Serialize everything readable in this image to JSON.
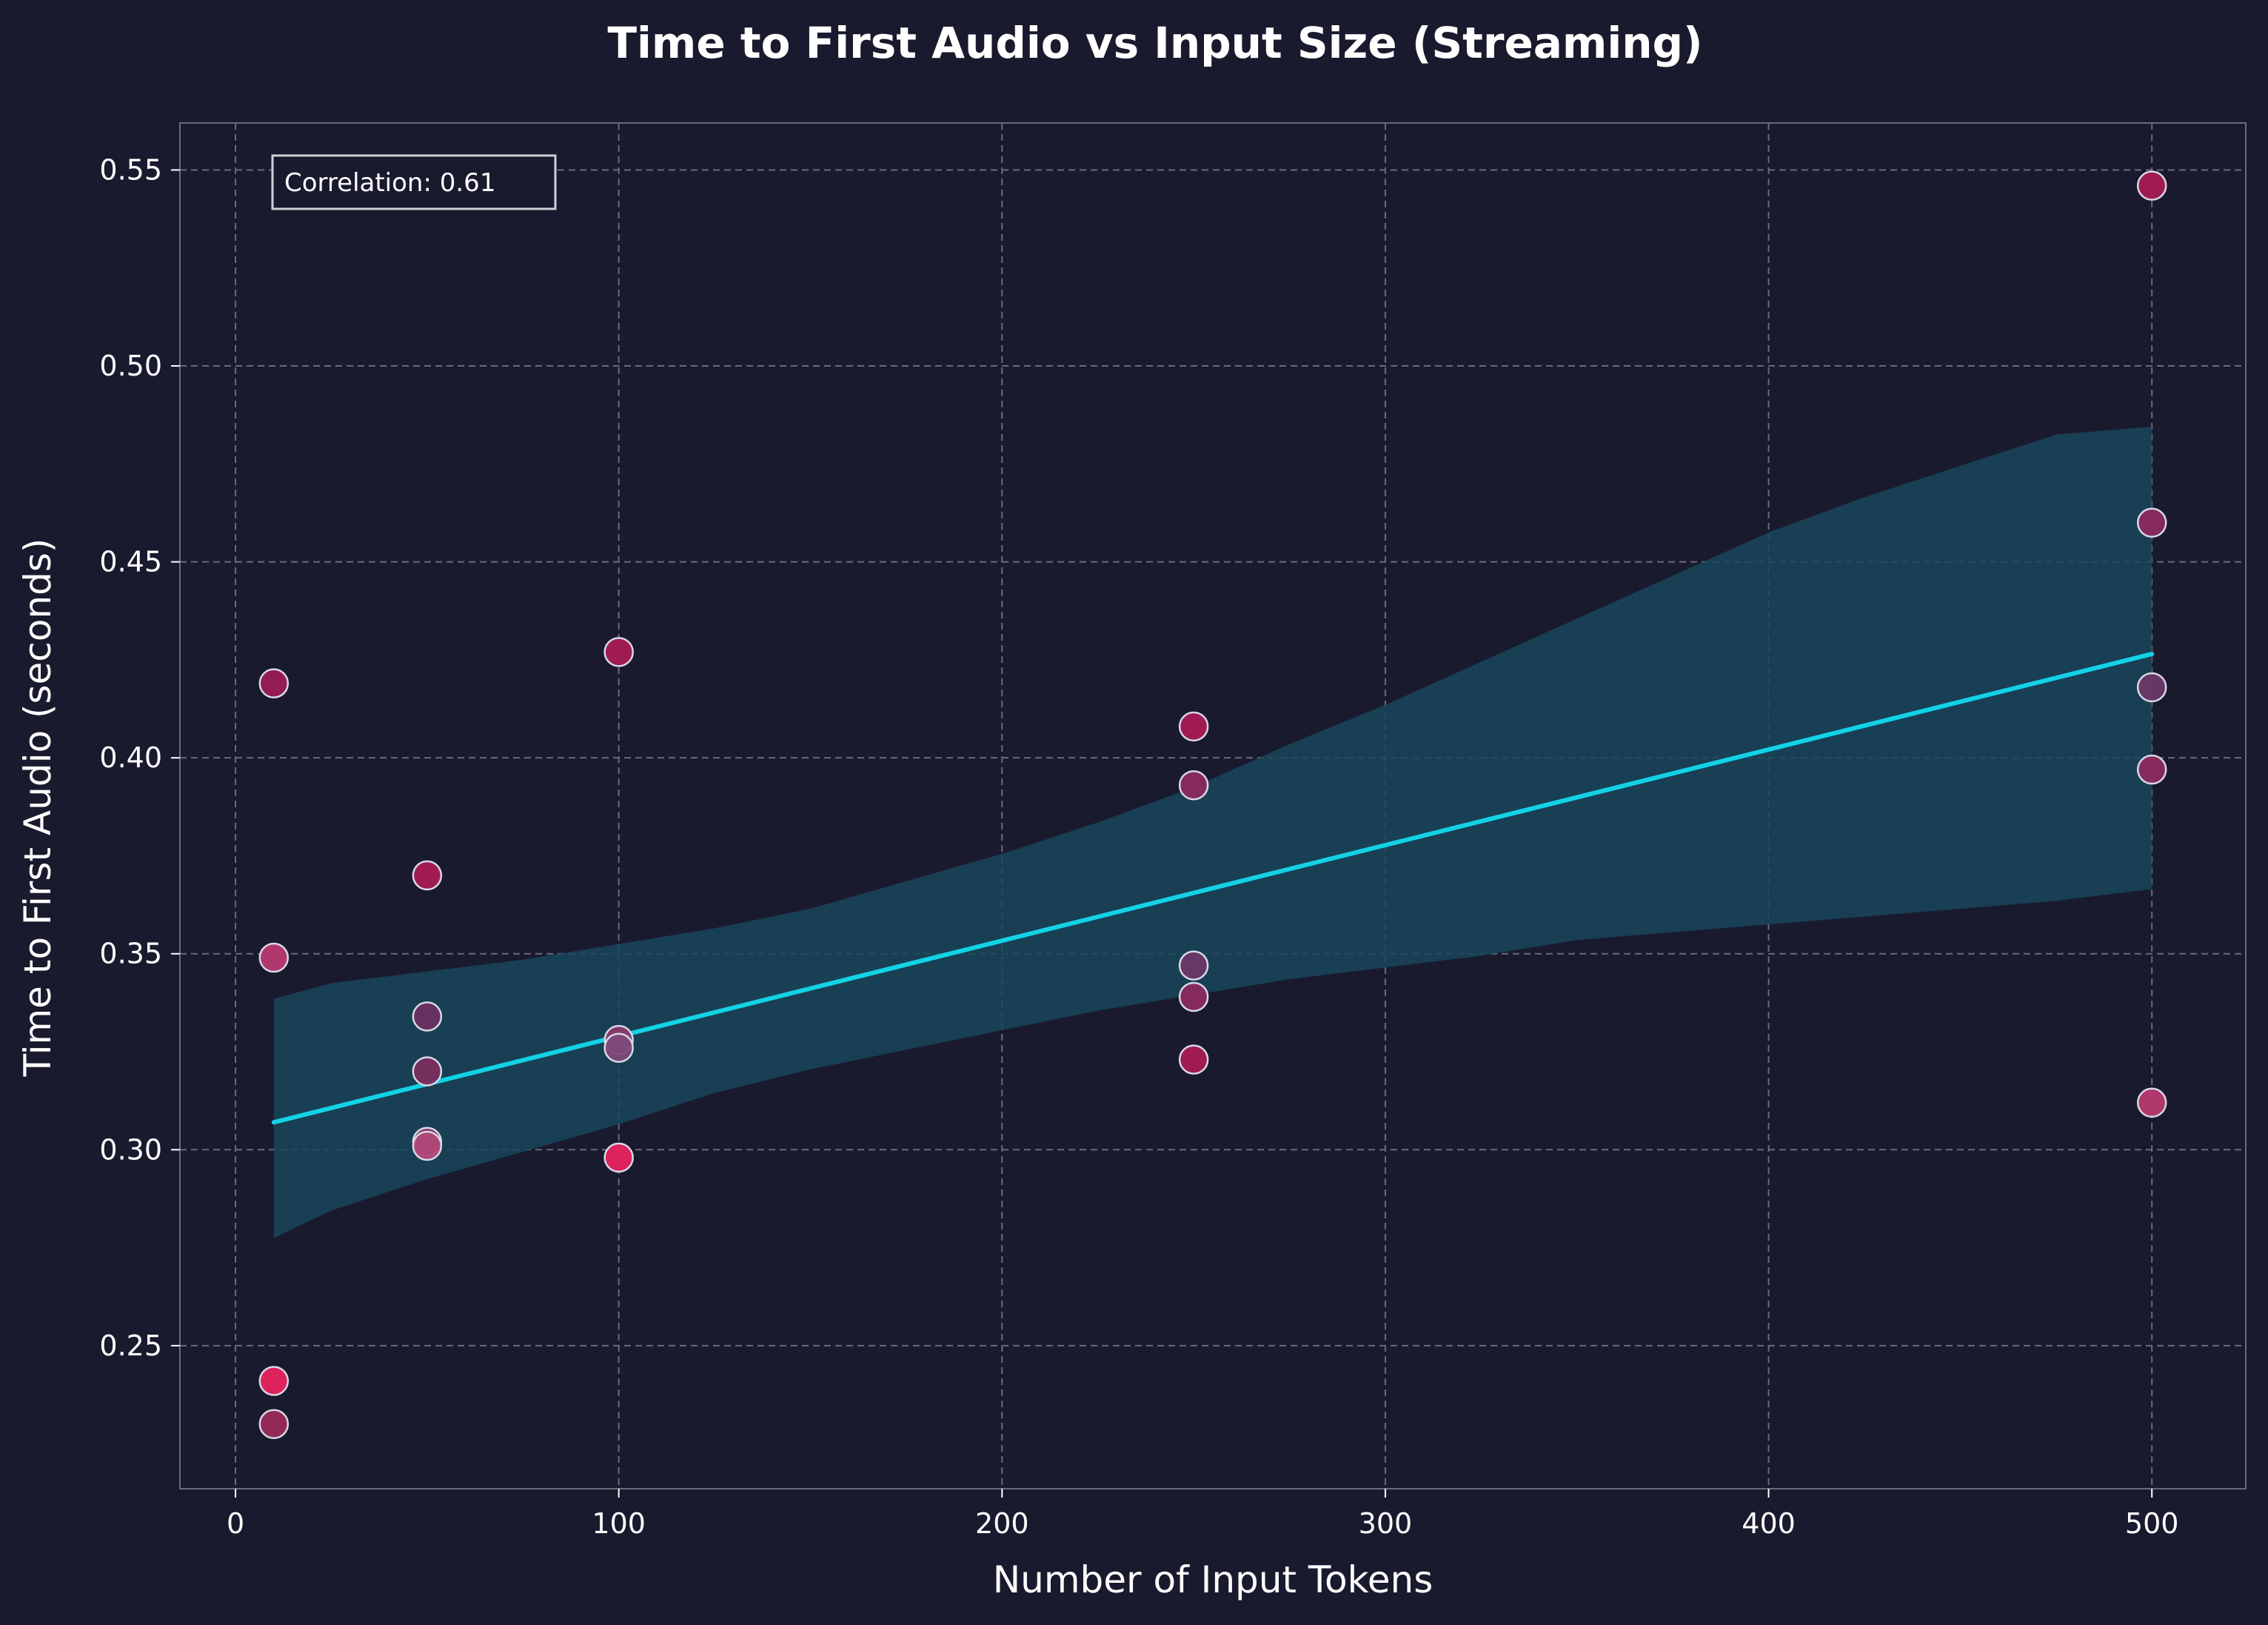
{
  "chart_data": {
    "type": "scatter",
    "title": "Time to First Audio vs Input Size (Streaming)",
    "xlabel": "Number of Input Tokens",
    "ylabel": "Time to First Audio (seconds)",
    "xlim": [
      -14.5,
      524.5
    ],
    "ylim": [
      0.2135,
      0.562
    ],
    "xticks": [
      0,
      100,
      200,
      300,
      400,
      500
    ],
    "xtick_labels": [
      "0",
      "100",
      "200",
      "300",
      "400",
      "500"
    ],
    "yticks": [
      0.25,
      0.3,
      0.35,
      0.4,
      0.45,
      0.5,
      0.55
    ],
    "ytick_labels": [
      "0.25",
      "0.30",
      "0.35",
      "0.40",
      "0.45",
      "0.50",
      "0.55"
    ],
    "grid": true,
    "annotation": "Correlation: 0.61",
    "points": [
      {
        "x": 10,
        "y": 0.419,
        "color": "#9b1b55"
      },
      {
        "x": 10,
        "y": 0.349,
        "color": "#b83a70"
      },
      {
        "x": 10,
        "y": 0.241,
        "color": "#e8245e"
      },
      {
        "x": 10,
        "y": 0.23,
        "color": "#9b2a5a"
      },
      {
        "x": 50,
        "y": 0.37,
        "color": "#a81b55"
      },
      {
        "x": 50,
        "y": 0.334,
        "color": "#6b3060"
      },
      {
        "x": 50,
        "y": 0.32,
        "color": "#7a2e5e"
      },
      {
        "x": 50,
        "y": 0.302,
        "color": "#8c3a6a"
      },
      {
        "x": 50,
        "y": 0.301,
        "color": "#b04878"
      },
      {
        "x": 100,
        "y": 0.427,
        "color": "#a81b55"
      },
      {
        "x": 100,
        "y": 0.328,
        "color": "#8c3a6a"
      },
      {
        "x": 100,
        "y": 0.326,
        "color": "#7d4a78"
      },
      {
        "x": 100,
        "y": 0.298,
        "color": "#e8245e"
      },
      {
        "x": 250,
        "y": 0.408,
        "color": "#a81b55"
      },
      {
        "x": 250,
        "y": 0.393,
        "color": "#8c2a5e"
      },
      {
        "x": 250,
        "y": 0.347,
        "color": "#6b3868"
      },
      {
        "x": 250,
        "y": 0.339,
        "color": "#8c2a5e"
      },
      {
        "x": 250,
        "y": 0.323,
        "color": "#a81b55"
      },
      {
        "x": 500,
        "y": 0.546,
        "color": "#a81b55"
      },
      {
        "x": 500,
        "y": 0.46,
        "color": "#8c2a5e"
      },
      {
        "x": 500,
        "y": 0.418,
        "color": "#6b3868"
      },
      {
        "x": 500,
        "y": 0.397,
        "color": "#8c2a5e"
      },
      {
        "x": 500,
        "y": 0.312,
        "color": "#b83a70"
      }
    ],
    "regression": {
      "x": [
        10,
        500
      ],
      "y": [
        0.307,
        0.4265
      ]
    },
    "confidence_band": {
      "x": [
        10,
        25,
        50,
        75,
        100,
        125,
        150,
        175,
        200,
        225,
        250,
        275,
        300,
        325,
        350,
        375,
        400,
        425,
        450,
        475,
        500
      ],
      "upper": [
        0.3385,
        0.3425,
        0.3455,
        0.3485,
        0.3525,
        0.3565,
        0.3615,
        0.3685,
        0.3755,
        0.3835,
        0.3925,
        0.4035,
        0.4135,
        0.4245,
        0.4355,
        0.4465,
        0.4575,
        0.4665,
        0.4745,
        0.4825,
        0.4845
      ],
      "lower": [
        0.2775,
        0.2845,
        0.2925,
        0.2995,
        0.3065,
        0.3145,
        0.3205,
        0.3255,
        0.3305,
        0.3355,
        0.3395,
        0.3435,
        0.3465,
        0.3495,
        0.3535,
        0.3555,
        0.3575,
        0.3595,
        0.3615,
        0.3635,
        0.3665
      ]
    }
  },
  "colors": {
    "background": "#1a1a2e",
    "line": "#14d2e6",
    "band": "#19465a",
    "grid": "#6a6a7a",
    "frame": "#6a6a7a",
    "point_edge": "#d8d8e6"
  }
}
